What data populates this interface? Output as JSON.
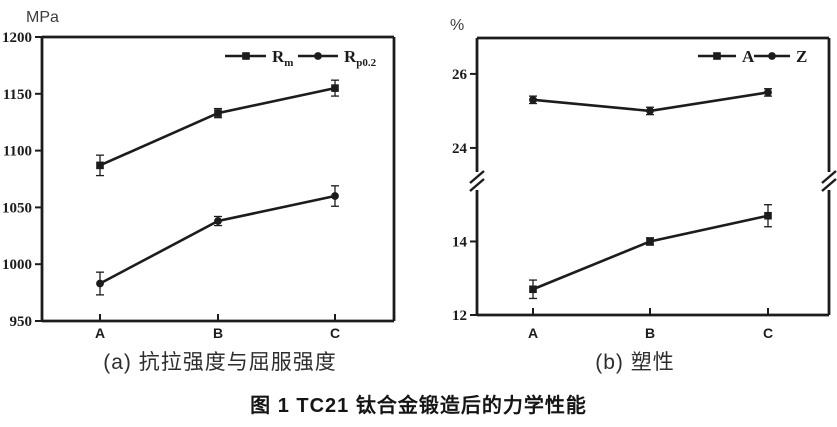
{
  "figure": {
    "title": "图 1  TC21 钛合金锻造后的力学性能"
  },
  "chart_data": [
    {
      "type": "line",
      "panel": "a",
      "unit_label": "MPa",
      "caption": "(a) 抗拉强度与屈服强度",
      "categories": [
        "A",
        "B",
        "C"
      ],
      "ylim": [
        950,
        1200
      ],
      "yticks": [
        950,
        1000,
        1050,
        1100,
        1150,
        1200
      ],
      "grid": false,
      "legend_position": "top-right",
      "axis_break": false,
      "series": [
        {
          "name": "Rm",
          "legend_main": "R",
          "legend_sub": "m",
          "marker": "square",
          "values": [
            1087,
            1133,
            1155
          ],
          "errors": [
            9,
            4,
            7
          ]
        },
        {
          "name": "Rp0.2",
          "legend_main": "R",
          "legend_sub": "p0.2",
          "marker": "circle",
          "values": [
            983,
            1038,
            1060
          ],
          "errors": [
            10,
            4,
            9
          ]
        }
      ]
    },
    {
      "type": "line",
      "panel": "b",
      "unit_label": "%",
      "caption": "(b) 塑性",
      "categories": [
        "A",
        "B",
        "C"
      ],
      "grid": false,
      "legend_position": "top-right",
      "axis_break": true,
      "segments": {
        "lower": {
          "ylim": [
            12,
            15.4
          ],
          "yticks": [
            12,
            14
          ]
        },
        "upper": {
          "ylim": [
            23.35,
            26.97
          ],
          "yticks": [
            24,
            26
          ]
        }
      },
      "series": [
        {
          "name": "A",
          "legend_main": "A",
          "legend_sub": "",
          "marker": "square",
          "segment": "lower",
          "values": [
            12.7,
            14.0,
            14.7
          ],
          "errors": [
            0.25,
            0.1,
            0.3
          ]
        },
        {
          "name": "Z",
          "legend_main": "Z",
          "legend_sub": "",
          "marker": "circle",
          "segment": "upper",
          "values": [
            25.3,
            25.0,
            25.5
          ],
          "errors": [
            0.1,
            0.1,
            0.1
          ]
        }
      ]
    }
  ]
}
